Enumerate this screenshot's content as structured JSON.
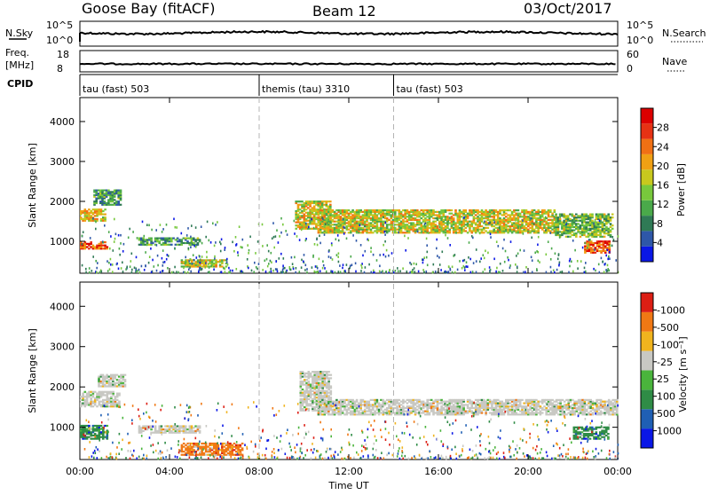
{
  "header": {
    "radar": "Goose Bay (fitACF)",
    "beam": "Beam 12",
    "date": "03/Oct/2017"
  },
  "nsky_panel": {
    "left_label": "N.Sky",
    "left_ticks": [
      "10^5",
      "10^0"
    ],
    "right_label": "N.Search",
    "right_ticks": [
      "10^5",
      "10^0"
    ]
  },
  "freq_panel": {
    "left_label_line1": "Freq.",
    "left_label_line2": "[MHz]",
    "left_ticks": [
      "18",
      "8"
    ],
    "right_label": "Nave",
    "right_ticks": [
      "60",
      "0"
    ]
  },
  "cpid": {
    "label": "CPID",
    "segments": [
      {
        "name": "tau (fast) 503",
        "start_hour": 0,
        "end_hour": 8
      },
      {
        "name": "themis (tau) 3310",
        "start_hour": 8,
        "end_hour": 14
      },
      {
        "name": "tau (fast) 503",
        "start_hour": 14,
        "end_hour": 24
      }
    ]
  },
  "chart_data": [
    {
      "type": "heatmap",
      "panel": "power",
      "ylabel": "Slant Range [km]",
      "yticks": [
        "1000",
        "2000",
        "3000",
        "4000"
      ],
      "ylim": [
        200,
        4600
      ],
      "xlim_hours": [
        0,
        24
      ],
      "colorbar_label": "Power [dB]",
      "colorbar_ticks": [
        "4",
        "8",
        "12",
        "16",
        "20",
        "24",
        "28"
      ],
      "colors": [
        "#0a17e6",
        "#2e57a8",
        "#2f7a55",
        "#4aa94a",
        "#78c83c",
        "#c8c81e",
        "#f0a014",
        "#f07014",
        "#e63214",
        "#dc0000"
      ],
      "bands": [
        {
          "t0": 0.0,
          "t1": 1.1,
          "r0": 1500,
          "r1": 1800,
          "level": 0.6
        },
        {
          "t0": 0.0,
          "t1": 1.2,
          "r0": 800,
          "r1": 1000,
          "level": 0.85
        },
        {
          "t0": 0.6,
          "t1": 1.8,
          "r0": 1900,
          "r1": 2300,
          "level": 0.3
        },
        {
          "t0": 2.6,
          "t1": 5.3,
          "r0": 900,
          "r1": 1100,
          "level": 0.3
        },
        {
          "t0": 4.5,
          "t1": 6.5,
          "r0": 350,
          "r1": 550,
          "level": 0.55
        },
        {
          "t0": 9.6,
          "t1": 11.2,
          "r0": 1300,
          "r1": 2000,
          "level": 0.55
        },
        {
          "t0": 10.6,
          "t1": 21.2,
          "r0": 1200,
          "r1": 1800,
          "level": 0.55
        },
        {
          "t0": 21.2,
          "t1": 23.8,
          "r0": 1100,
          "r1": 1700,
          "level": 0.4
        },
        {
          "t0": 22.5,
          "t1": 23.6,
          "r0": 700,
          "r1": 1000,
          "level": 0.85
        }
      ]
    },
    {
      "type": "heatmap",
      "panel": "velocity",
      "ylabel": "Slant Range [km]",
      "yticks": [
        "1000",
        "2000",
        "3000",
        "4000"
      ],
      "ylim": [
        200,
        4600
      ],
      "xlim_hours": [
        0,
        24
      ],
      "xticks": [
        "00:00",
        "04:00",
        "08:00",
        "12:00",
        "16:00",
        "20:00",
        "00:00"
      ],
      "xlabel": "Time UT",
      "colorbar_label": "Velocity [m s⁻¹]",
      "colorbar_ticks": [
        "1000",
        "500",
        "100",
        "25",
        "-25",
        "-100",
        "-500",
        "-1000"
      ],
      "colors": [
        "#0a17e6",
        "#1f5fb4",
        "#2f8c46",
        "#4ab43c",
        "#c8c8c3",
        "#f0b41e",
        "#f07814",
        "#dc1e14"
      ],
      "bands": [
        {
          "t0": 0.0,
          "t1": 1.8,
          "r0": 1500,
          "r1": 1900,
          "level": 4
        },
        {
          "t0": 0.8,
          "t1": 2.0,
          "r0": 2000,
          "r1": 2300,
          "level": 4
        },
        {
          "t0": 0.0,
          "t1": 1.2,
          "r0": 700,
          "r1": 1050,
          "level": 2
        },
        {
          "t0": 2.6,
          "t1": 5.3,
          "r0": 850,
          "r1": 1050,
          "level": 4
        },
        {
          "t0": 4.5,
          "t1": 7.2,
          "r0": 300,
          "r1": 600,
          "level": 6
        },
        {
          "t0": 9.8,
          "t1": 11.2,
          "r0": 1400,
          "r1": 2400,
          "level": 4
        },
        {
          "t0": 10.6,
          "t1": 24.0,
          "r0": 1300,
          "r1": 1700,
          "level": 4
        },
        {
          "t0": 22.0,
          "t1": 23.6,
          "r0": 700,
          "r1": 1000,
          "level": 2
        }
      ]
    }
  ]
}
